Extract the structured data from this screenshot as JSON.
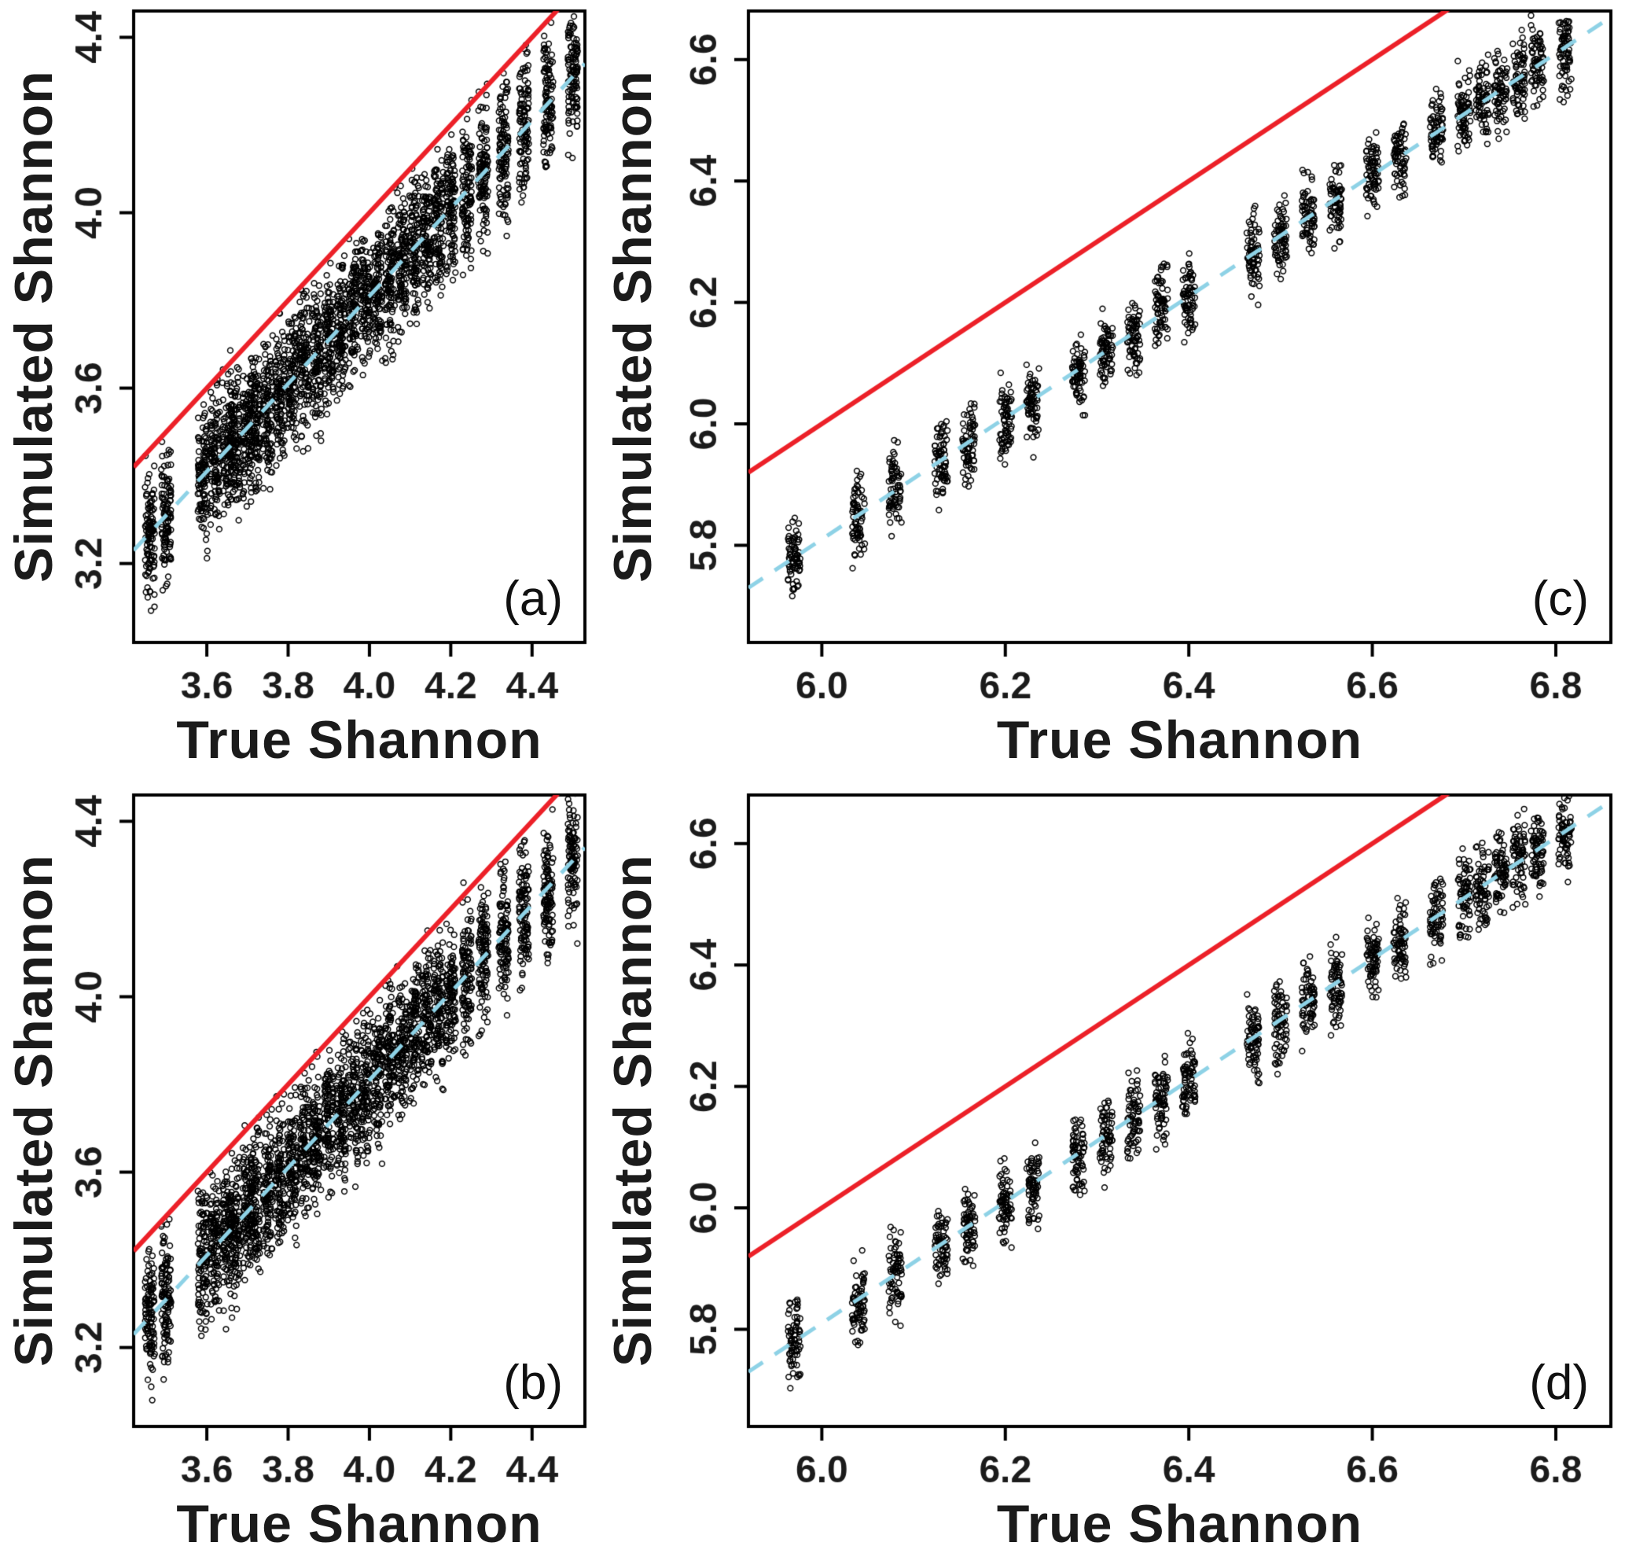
{
  "figure": {
    "description": "Four-panel scatter figure comparing simulated versus true Shannon diversity, each panel with a solid red 1:1 line and a dashed light-blue fit line through the point clusters."
  },
  "chart_data": [
    {
      "panel_label": "(a)",
      "type": "scatter",
      "xlabel": "True Shannon",
      "ylabel": "Simulated Shannon",
      "xlim": [
        3.42,
        4.53
      ],
      "ylim": [
        3.02,
        4.46
      ],
      "xticks": [
        3.6,
        3.8,
        4.0,
        4.2,
        4.4
      ],
      "yticks": [
        3.2,
        3.6,
        4.0,
        4.4
      ],
      "grid": false,
      "legend": "none",
      "marker": {
        "shape": "open-circle",
        "color": "#000000"
      },
      "lines": {
        "identity": {
          "desc": "1:1 reference line y = x",
          "style": "solid",
          "color": "#ec2028",
          "slope": 1,
          "intercept": 0
        },
        "fit": {
          "desc": "dashed fit through simulated values",
          "style": "dashed",
          "color": "#8ed2e6",
          "slope": 1,
          "intercept": -0.19
        }
      },
      "clusters": {
        "x": [
          3.46,
          3.5,
          3.59,
          3.62,
          3.65,
          3.67,
          3.7,
          3.72,
          3.75,
          3.78,
          3.81,
          3.84,
          3.87,
          3.9,
          3.93,
          3.96,
          3.99,
          4.02,
          4.05,
          4.08,
          4.11,
          4.14,
          4.17,
          4.2,
          4.24,
          4.28,
          4.33,
          4.38,
          4.44,
          4.5
        ],
        "points_per_cluster": 110,
        "y_offset": -0.19,
        "y_sd": 0.075,
        "x_jitter": 0.012
      }
    },
    {
      "panel_label": "(c)",
      "type": "scatter",
      "xlabel": "True Shannon",
      "ylabel": "Simulated Shannon",
      "xlim": [
        5.92,
        6.86
      ],
      "ylim": [
        5.64,
        6.68
      ],
      "xticks": [
        6.0,
        6.2,
        6.4,
        6.6,
        6.8
      ],
      "yticks": [
        5.8,
        6.0,
        6.2,
        6.4,
        6.6
      ],
      "grid": false,
      "legend": "none",
      "marker": {
        "shape": "open-circle",
        "color": "#000000"
      },
      "lines": {
        "identity": {
          "desc": "1:1 reference line y = x",
          "style": "solid",
          "color": "#ec2028",
          "slope": 1,
          "intercept": 0
        },
        "fit": {
          "desc": "dashed fit through simulated values",
          "style": "dashed",
          "color": "#8ed2e6",
          "slope": 1,
          "intercept": -0.19
        }
      },
      "clusters": {
        "x": [
          5.97,
          6.04,
          6.08,
          6.13,
          6.16,
          6.2,
          6.23,
          6.28,
          6.31,
          6.34,
          6.37,
          6.4,
          6.47,
          6.5,
          6.53,
          6.56,
          6.6,
          6.63,
          6.67,
          6.7,
          6.72,
          6.74,
          6.76,
          6.78,
          6.81
        ],
        "points_per_cluster": 70,
        "y_offset": -0.19,
        "y_sd": 0.032,
        "x_jitter": 0.007
      }
    },
    {
      "panel_label": "(b)",
      "type": "scatter",
      "xlabel": "True Shannon",
      "ylabel": "Simulated Shannon",
      "xlim": [
        3.42,
        4.53
      ],
      "ylim": [
        3.02,
        4.46
      ],
      "xticks": [
        3.6,
        3.8,
        4.0,
        4.2,
        4.4
      ],
      "yticks": [
        3.2,
        3.6,
        4.0,
        4.4
      ],
      "grid": false,
      "legend": "none",
      "marker": {
        "shape": "open-circle",
        "color": "#000000"
      },
      "lines": {
        "identity": {
          "desc": "1:1 reference line y = x",
          "style": "solid",
          "color": "#ec2028",
          "slope": 1,
          "intercept": 0
        },
        "fit": {
          "desc": "dashed fit through simulated values",
          "style": "dashed",
          "color": "#8ed2e6",
          "slope": 1,
          "intercept": -0.19
        }
      },
      "clusters": {
        "x": [
          3.46,
          3.5,
          3.59,
          3.62,
          3.65,
          3.67,
          3.7,
          3.72,
          3.75,
          3.78,
          3.81,
          3.84,
          3.87,
          3.9,
          3.93,
          3.96,
          3.99,
          4.02,
          4.05,
          4.08,
          4.11,
          4.14,
          4.17,
          4.2,
          4.24,
          4.28,
          4.33,
          4.38,
          4.44,
          4.5
        ],
        "points_per_cluster": 110,
        "y_offset": -0.19,
        "y_sd": 0.075,
        "x_jitter": 0.012
      }
    },
    {
      "panel_label": "(d)",
      "type": "scatter",
      "xlabel": "True Shannon",
      "ylabel": "Simulated Shannon",
      "xlim": [
        5.92,
        6.86
      ],
      "ylim": [
        5.64,
        6.68
      ],
      "xticks": [
        6.0,
        6.2,
        6.4,
        6.6,
        6.8
      ],
      "yticks": [
        5.8,
        6.0,
        6.2,
        6.4,
        6.6
      ],
      "grid": false,
      "legend": "none",
      "marker": {
        "shape": "open-circle",
        "color": "#000000"
      },
      "lines": {
        "identity": {
          "desc": "1:1 reference line y = x",
          "style": "solid",
          "color": "#ec2028",
          "slope": 1,
          "intercept": 0
        },
        "fit": {
          "desc": "dashed fit through simulated values",
          "style": "dashed",
          "color": "#8ed2e6",
          "slope": 1,
          "intercept": -0.19
        }
      },
      "clusters": {
        "x": [
          5.97,
          6.04,
          6.08,
          6.13,
          6.16,
          6.2,
          6.23,
          6.28,
          6.31,
          6.34,
          6.37,
          6.4,
          6.47,
          6.5,
          6.53,
          6.56,
          6.6,
          6.63,
          6.67,
          6.7,
          6.72,
          6.74,
          6.76,
          6.78,
          6.81
        ],
        "points_per_cluster": 70,
        "y_offset": -0.19,
        "y_sd": 0.032,
        "x_jitter": 0.007
      }
    }
  ]
}
